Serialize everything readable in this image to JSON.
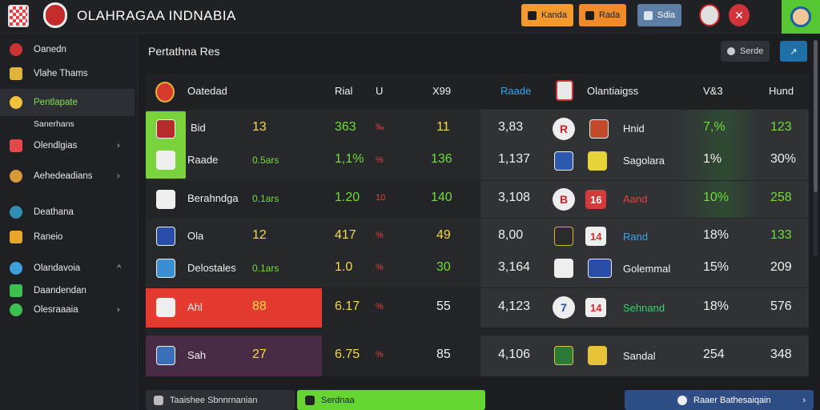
{
  "header": {
    "title": "OLAHRAGAA INDNABIA",
    "buttons": [
      {
        "label": "Kanda",
        "color": "#f39a2c"
      },
      {
        "label": "Rada",
        "color": "#f08b2a"
      },
      {
        "label": "Sdia",
        "color": "#5e7fa5"
      }
    ]
  },
  "sidebar": {
    "items": [
      {
        "label": "Oanedn",
        "icon": "ball-icon",
        "chevron": ""
      },
      {
        "label": "Vlahe Thams",
        "icon": "shield-icon",
        "chevron": ""
      },
      {
        "label": "Pentlapate",
        "icon": "person-icon",
        "chevron": ""
      },
      {
        "label": "Sanerhans",
        "icon": "",
        "chevron": ""
      },
      {
        "label": "Olendlgias",
        "icon": "club-icon",
        "chevron": "›"
      },
      {
        "label": "Aehedeadians",
        "icon": "person-icon",
        "chevron": "›"
      },
      {
        "label": "Deathana",
        "icon": "badge-icon",
        "chevron": ""
      },
      {
        "label": "Raneio",
        "icon": "flag-icon",
        "chevron": ""
      },
      {
        "label": "Olandavoia",
        "icon": "badge-icon",
        "chevron": "^"
      },
      {
        "label": "Daandendan",
        "icon": "jersey-icon",
        "chevron": ""
      },
      {
        "label": "Olesraaaia",
        "icon": "check-icon",
        "chevron": "›"
      }
    ]
  },
  "main": {
    "title": "Pertathna Res",
    "controls": {
      "search_label": "Serde",
      "icon": "chart-icon"
    }
  },
  "table": {
    "headers_left": [
      "Oatedad",
      "Rial",
      "U",
      "X99"
    ],
    "headers_right": [
      "Raade",
      "Olantiaigss",
      "V&3",
      "Hund"
    ],
    "rows": [
      {
        "team": "Bid",
        "a": "13",
        "b": "363",
        "c": "‰",
        "d": "11",
        "e": "3,83",
        "badge": "R",
        "club": "Hnid",
        "f": "7,%",
        "g": "123"
      },
      {
        "team": "Raade",
        "a": "0.5ars",
        "b": "1,1%",
        "c": "%",
        "d": "136",
        "e": "1,137",
        "badge": "",
        "club": "Sagolara",
        "f": "1%",
        "g": "30%"
      },
      {
        "team": "Berahndga",
        "a": "0.1ars",
        "b": "1.20",
        "c": "10",
        "d": "140",
        "e": "3,108",
        "badge": "B",
        "club": "Aand",
        "f": "10%",
        "g": "258"
      },
      {
        "team": "Ola",
        "a": "12",
        "b": "417",
        "c": "%",
        "d": "49",
        "e": "8,00",
        "badge": "",
        "club": "Rand",
        "f": "18%",
        "g": "133"
      },
      {
        "team": "Delostales",
        "a": "0.1ars",
        "b": "1.0",
        "c": "%",
        "d": "30",
        "e": "3,164",
        "badge": "",
        "club": "Golemmal",
        "f": "15%",
        "g": "209"
      },
      {
        "team": "Ahl",
        "a": "88",
        "b": "6.17",
        "c": "%",
        "d": "55",
        "e": "4,123",
        "badge": "7",
        "club": "Sehnand",
        "f": "18%",
        "g": "576"
      },
      {
        "team": "Sah",
        "a": "27",
        "b": "6.75",
        "c": "%",
        "d": "85",
        "e": "4,106",
        "badge": "",
        "club": "Sandal",
        "f": "254",
        "g": "348"
      }
    ],
    "pills": [
      "16",
      "14",
      "14"
    ]
  },
  "footer": {
    "left_label": "Taaishee Sbnnrnanian",
    "mid_label": "Serdnaa",
    "right_label": "Raaer Bathesaiqain",
    "chevron": "›"
  }
}
